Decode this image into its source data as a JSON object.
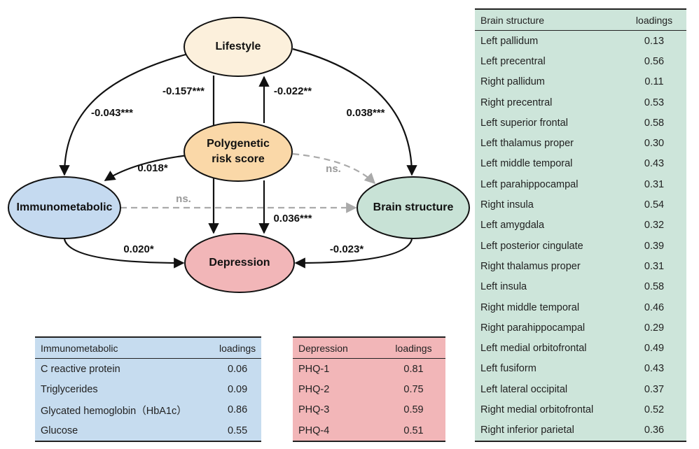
{
  "diagram": {
    "nodes": [
      {
        "label": "Lifestyle"
      },
      {
        "label": "Polygenetic risk score"
      },
      {
        "label": "Immunometabolic"
      },
      {
        "label": "Brain structure"
      },
      {
        "label": "Depression"
      }
    ],
    "edges": [
      {
        "from": "Lifestyle",
        "to": "Immunometabolic",
        "label": "-0.043***"
      },
      {
        "from": "Lifestyle",
        "to": "Brain structure",
        "label": "0.038***"
      },
      {
        "from": "Lifestyle",
        "to": "Depression",
        "label": "-0.157***"
      },
      {
        "from": "Polygenetic risk score",
        "to": "Lifestyle",
        "label": "-0.022**"
      },
      {
        "from": "Polygenetic risk score",
        "to": "Immunometabolic",
        "label": "0.018*"
      },
      {
        "from": "Polygenetic risk score",
        "to": "Brain structure",
        "label": "ns."
      },
      {
        "from": "Polygenetic risk score",
        "to": "Depression",
        "label": "0.036***"
      },
      {
        "from": "Immunometabolic",
        "to": "Brain structure",
        "label": "ns."
      },
      {
        "from": "Immunometabolic",
        "to": "Depression",
        "label": "0.020*"
      },
      {
        "from": "Brain structure",
        "to": "Depression",
        "label": "-0.023*"
      }
    ]
  },
  "tables": [
    {
      "header": [
        "Brain structure",
        "loadings"
      ],
      "rows": [
        [
          "Left pallidum",
          "0.13"
        ],
        [
          "Left precentral",
          "0.56"
        ],
        [
          "Right pallidum",
          "0.11"
        ],
        [
          "Right precentral",
          "0.53"
        ],
        [
          "Left superior frontal",
          "0.58"
        ],
        [
          "Left thalamus proper",
          "0.30"
        ],
        [
          "Left middle temporal",
          "0.43"
        ],
        [
          "Left parahippocampal",
          "0.31"
        ],
        [
          "Right insula",
          "0.54"
        ],
        [
          "Left amygdala",
          "0.32"
        ],
        [
          "Left posterior cingulate",
          "0.39"
        ],
        [
          "Right thalamus proper",
          "0.31"
        ],
        [
          "Left insula",
          "0.58"
        ],
        [
          "Right middle temporal",
          "0.46"
        ],
        [
          "Right parahippocampal",
          "0.29"
        ],
        [
          "Left medial orbitofrontal",
          "0.49"
        ],
        [
          "Left fusiform",
          "0.43"
        ],
        [
          "Left lateral occipital",
          "0.37"
        ],
        [
          "Right medial orbitofrontal",
          "0.52"
        ],
        [
          "Right inferior parietal",
          "0.36"
        ]
      ]
    },
    {
      "header": [
        "Immunometabolic",
        "loadings"
      ],
      "rows": [
        [
          "C reactive protein",
          "0.06"
        ],
        [
          "Triglycerides",
          "0.09"
        ],
        [
          "Glycated hemoglobin（HbA1c）",
          "0.86"
        ],
        [
          "Glucose",
          "0.55"
        ]
      ]
    },
    {
      "header": [
        "Depression",
        "loadings"
      ],
      "rows": [
        [
          "PHQ-1",
          "0.81"
        ],
        [
          "PHQ-2",
          "0.75"
        ],
        [
          "PHQ-3",
          "0.59"
        ],
        [
          "PHQ-4",
          "0.51"
        ]
      ]
    }
  ]
}
